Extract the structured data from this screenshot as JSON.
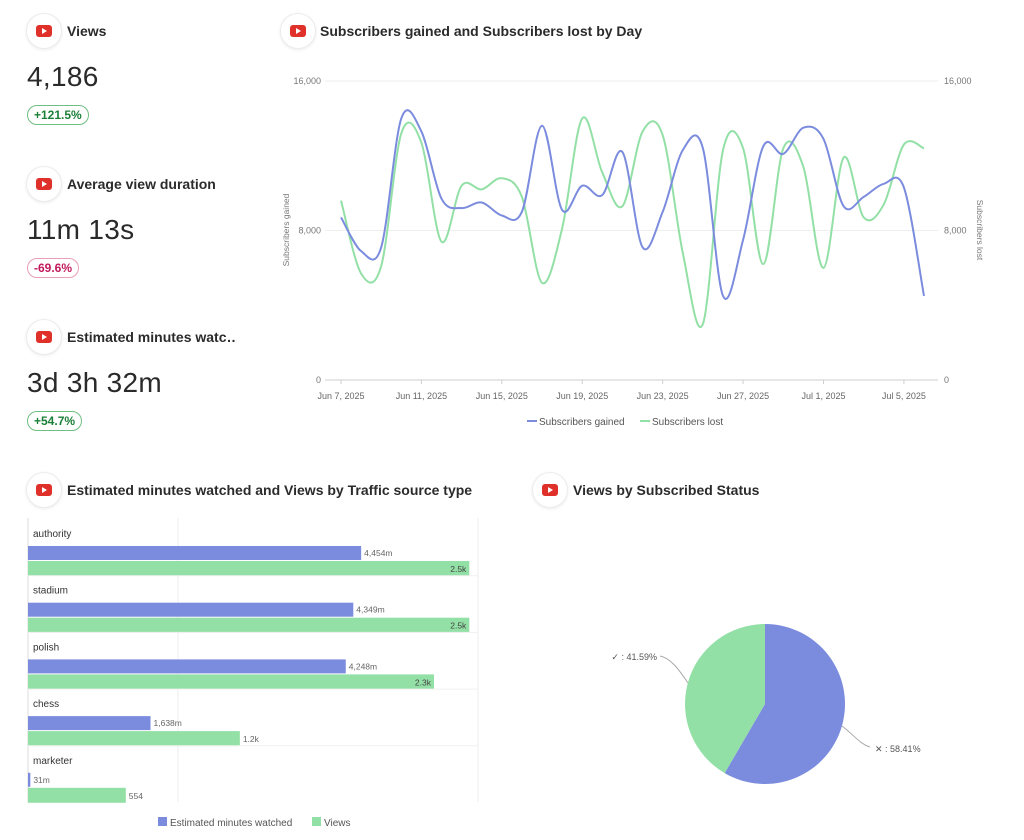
{
  "kpis": [
    {
      "title": "Views",
      "value": "4,186",
      "change": "+121.5%",
      "trend": "pos"
    },
    {
      "title": "Average view duration",
      "value": "11m 13s",
      "change": "-69.6%",
      "trend": "neg"
    },
    {
      "title": "Estimated minutes watc…",
      "value": "3d 3h 32m",
      "change": "+54.7%",
      "trend": "pos"
    }
  ],
  "line_card": {
    "title": "Subscribers gained and Subscribers lost by Day"
  },
  "bar_card": {
    "title": "Estimated minutes watched and Views by Traffic source type"
  },
  "pie_card": {
    "title": "Views by Subscribed Status"
  },
  "colors": {
    "blue": "#7b8cde",
    "green": "#93e0a6",
    "youtube_red": "#e0302a"
  },
  "chart_data": [
    {
      "type": "line",
      "title": "Subscribers gained and Subscribers lost by Day",
      "ylabel": "Subscribers gained",
      "y2label": "Subscribers lost",
      "ylim": [
        0,
        16000
      ],
      "yticks": [
        "0",
        "8,000",
        "16,000"
      ],
      "xticks": [
        "Jun 7, 2025",
        "Jun 11, 2025",
        "Jun 15, 2025",
        "Jun 19, 2025",
        "Jun 23, 2025",
        "Jun 27, 2025",
        "Jul 1, 2025",
        "Jul 5, 2025"
      ],
      "x": [
        "Jun 7",
        "Jun 8",
        "Jun 9",
        "Jun 10",
        "Jun 11",
        "Jun 12",
        "Jun 13",
        "Jun 14",
        "Jun 15",
        "Jun 16",
        "Jun 17",
        "Jun 18",
        "Jun 19",
        "Jun 20",
        "Jun 21",
        "Jun 22",
        "Jun 23",
        "Jun 24",
        "Jun 25",
        "Jun 26",
        "Jun 27",
        "Jun 28",
        "Jun 29",
        "Jun 30",
        "Jul 1",
        "Jul 2",
        "Jul 3",
        "Jul 4",
        "Jul 5",
        "Jul 6"
      ],
      "legend": "bottom",
      "series": [
        {
          "name": "Subscribers gained",
          "color": "#7b8cde",
          "values": [
            8700,
            6900,
            7100,
            14000,
            13300,
            9700,
            9200,
            9500,
            8800,
            9000,
            13600,
            9100,
            10400,
            9900,
            12200,
            7100,
            9000,
            12300,
            12400,
            4500,
            7500,
            12500,
            12100,
            13500,
            12900,
            9300,
            9800,
            10500,
            10300,
            4500
          ]
        },
        {
          "name": "Subscribers lost",
          "color": "#93e0a6",
          "values": [
            9600,
            5700,
            6100,
            13200,
            12700,
            7400,
            10400,
            10200,
            10800,
            9800,
            5200,
            8100,
            14000,
            11100,
            9300,
            13300,
            13100,
            6800,
            3000,
            12300,
            12400,
            6200,
            12400,
            11400,
            6000,
            11900,
            8700,
            9400,
            12600,
            12400
          ]
        }
      ]
    },
    {
      "type": "bar",
      "title": "Estimated minutes watched and Views by Traffic source type",
      "categories": [
        "authority",
        "stadium",
        "polish",
        "chess",
        "marketer"
      ],
      "legend": "bottom",
      "series": [
        {
          "name": "Estimated minutes watched",
          "color": "#7b8cde",
          "values": [
            4454,
            4349,
            4248,
            1638,
            31
          ],
          "labels": [
            "4,454m",
            "4,349m",
            "4,248m",
            "1,638m",
            "31m"
          ]
        },
        {
          "name": "Views",
          "color": "#93e0a6",
          "values": [
            2500,
            2500,
            2300,
            1200,
            554
          ],
          "labels": [
            "2.5k",
            "2.5k",
            "2.3k",
            "1.2k",
            "554"
          ]
        }
      ]
    },
    {
      "type": "pie",
      "title": "Views by Subscribed Status",
      "slices": [
        {
          "label": "✕",
          "value": 58.41,
          "text": "58.41%",
          "color": "#7b8cde"
        },
        {
          "label": "✓",
          "value": 41.59,
          "text": "41.59%",
          "color": "#93e0a6"
        }
      ]
    }
  ]
}
